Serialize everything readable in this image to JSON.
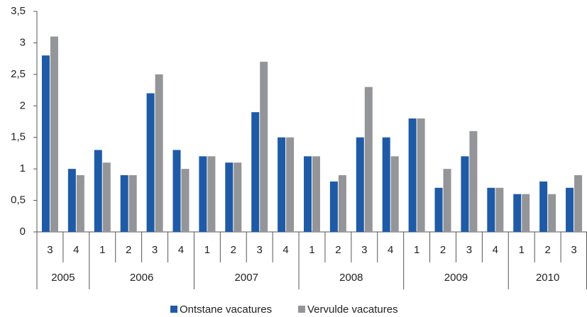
{
  "chart_data": {
    "type": "bar",
    "years": [
      {
        "name": "2005",
        "quarters": [
          "3",
          "4"
        ]
      },
      {
        "name": "2006",
        "quarters": [
          "1",
          "2",
          "3",
          "4"
        ]
      },
      {
        "name": "2007",
        "quarters": [
          "1",
          "2",
          "3",
          "4"
        ]
      },
      {
        "name": "2008",
        "quarters": [
          "1",
          "2",
          "3",
          "4"
        ]
      },
      {
        "name": "2009",
        "quarters": [
          "1",
          "2",
          "3",
          "4"
        ]
      },
      {
        "name": "2010",
        "quarters": [
          "1",
          "2",
          "3"
        ]
      }
    ],
    "series": [
      {
        "name": "Ontstane vacatures",
        "color": "#1f5aa6",
        "values": [
          2.8,
          1.0,
          1.3,
          0.9,
          2.2,
          1.3,
          1.2,
          1.1,
          1.9,
          1.5,
          1.2,
          0.8,
          1.5,
          1.5,
          1.8,
          0.7,
          1.2,
          0.7,
          0.6,
          0.8,
          0.7
        ]
      },
      {
        "name": "Vervulde vacatures",
        "color": "#939598",
        "values": [
          3.1,
          0.9,
          1.1,
          0.9,
          2.5,
          1.0,
          1.2,
          1.1,
          2.7,
          1.5,
          1.2,
          0.9,
          2.3,
          1.2,
          1.8,
          1.0,
          1.6,
          0.7,
          0.6,
          0.6,
          0.9
        ]
      }
    ],
    "ylim": [
      0,
      3.5
    ],
    "yticks": [
      0,
      {
        "value": 0.5,
        "label": "0,5"
      },
      1,
      {
        "value": 1.5,
        "label": "1,5"
      },
      2,
      {
        "value": 2.5,
        "label": "2,5"
      },
      3,
      {
        "value": 3.5,
        "label": "3,5"
      }
    ],
    "grid": false,
    "legend": "bottom"
  }
}
